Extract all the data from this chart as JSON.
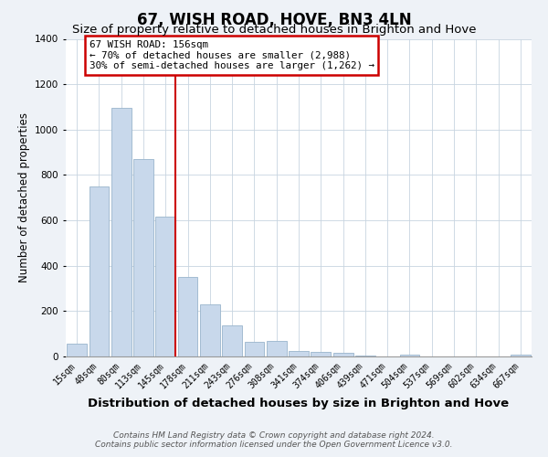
{
  "title": "67, WISH ROAD, HOVE, BN3 4LN",
  "subtitle": "Size of property relative to detached houses in Brighton and Hove",
  "xlabel": "Distribution of detached houses by size in Brighton and Hove",
  "ylabel": "Number of detached properties",
  "categories": [
    "15sqm",
    "48sqm",
    "80sqm",
    "113sqm",
    "145sqm",
    "178sqm",
    "211sqm",
    "243sqm",
    "276sqm",
    "308sqm",
    "341sqm",
    "374sqm",
    "406sqm",
    "439sqm",
    "471sqm",
    "504sqm",
    "537sqm",
    "569sqm",
    "602sqm",
    "634sqm",
    "667sqm"
  ],
  "values": [
    55,
    750,
    1095,
    870,
    615,
    350,
    230,
    135,
    65,
    70,
    25,
    20,
    15,
    5,
    0,
    10,
    0,
    0,
    0,
    0,
    10
  ],
  "bar_color": "#c8d8eb",
  "bar_edge_color": "#9ab5cc",
  "vline_x_index": 4,
  "vline_color": "#cc0000",
  "annotation_text": "67 WISH ROAD: 156sqm\n← 70% of detached houses are smaller (2,988)\n30% of semi-detached houses are larger (1,262) →",
  "annotation_box_color": "#ffffff",
  "annotation_box_edge_color": "#cc0000",
  "ylim": [
    0,
    1400
  ],
  "yticks": [
    0,
    200,
    400,
    600,
    800,
    1000,
    1200,
    1400
  ],
  "footer_line1": "Contains HM Land Registry data © Crown copyright and database right 2024.",
  "footer_line2": "Contains public sector information licensed under the Open Government Licence v3.0.",
  "bg_color": "#eef2f7",
  "plot_bg_color": "#ffffff",
  "title_fontsize": 12,
  "subtitle_fontsize": 9.5,
  "tick_fontsize": 7,
  "ylabel_fontsize": 8.5,
  "xlabel_fontsize": 9.5,
  "footer_fontsize": 6.5
}
